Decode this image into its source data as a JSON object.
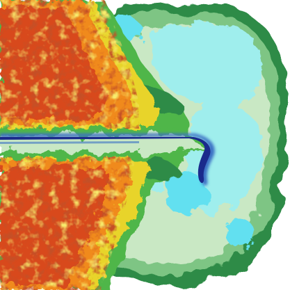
{
  "image": {
    "subject": "volume-rendered-turbulent-jet-simulation",
    "background": "#ffffff",
    "colors": {
      "core": "#1a2a8c",
      "core_edge": "#3a6fc4",
      "ambient": "#9feeed",
      "cyan_bright": "#62e0f0",
      "shell_light": "#c9e8c4",
      "shell": "#7ec584",
      "shell_dark": "#2e8b46",
      "mix_green": "#4fb64a",
      "mix_yellow": "#e8d42a",
      "hot_orange": "#f08a1c",
      "hot_red": "#d84a1a",
      "hot_dark": "#a02a10"
    }
  }
}
